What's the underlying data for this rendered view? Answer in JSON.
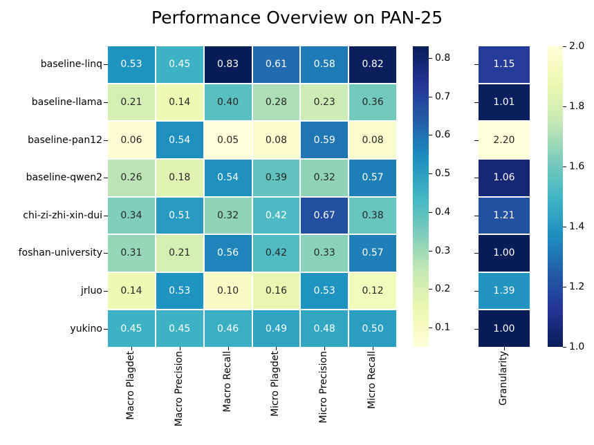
{
  "chart_data": {
    "type": "heatmap",
    "title": "Performance Overview on PAN-25",
    "rows": [
      "baseline-linq",
      "baseline-llama",
      "baseline-pan12",
      "baseline-qwen2",
      "chi-zi-zhi-xin-dui",
      "foshan-university",
      "jrluo",
      "yukino"
    ],
    "panels": [
      {
        "id": "main",
        "columns": [
          "Macro Plagdet",
          "Macro Precision",
          "Macro Recall",
          "Micro Plagdet",
          "Micro Precision",
          "Micro Recall"
        ],
        "values": [
          [
            0.53,
            0.45,
            0.83,
            0.61,
            0.58,
            0.82
          ],
          [
            0.21,
            0.14,
            0.4,
            0.28,
            0.23,
            0.36
          ],
          [
            0.06,
            0.54,
            0.05,
            0.08,
            0.59,
            0.08
          ],
          [
            0.26,
            0.18,
            0.54,
            0.39,
            0.32,
            0.57
          ],
          [
            0.34,
            0.51,
            0.32,
            0.423,
            0.67,
            0.38
          ],
          [
            0.31,
            0.21,
            0.56,
            0.417,
            0.33,
            0.57
          ],
          [
            0.14,
            0.53,
            0.1,
            0.16,
            0.53,
            0.12
          ],
          [
            0.45,
            0.45,
            0.46,
            0.49,
            0.48,
            0.5
          ]
        ],
        "cbar_min": 0.05,
        "cbar_max": 0.83,
        "colormap_reversed": false,
        "colorbar_ticks": [
          0.8,
          0.7,
          0.6,
          0.5,
          0.4,
          0.3,
          0.2,
          0.1
        ],
        "show_row_labels": true
      },
      {
        "id": "granularity",
        "columns": [
          "Granularity"
        ],
        "values": [
          [
            1.15
          ],
          [
            1.01
          ],
          [
            2.2
          ],
          [
            1.06
          ],
          [
            1.21
          ],
          [
            1.0
          ],
          [
            1.39
          ],
          [
            1.0
          ]
        ],
        "cbar_min": 1.0,
        "cbar_max": 2.0,
        "colormap_reversed": true,
        "colorbar_ticks": [
          2.0,
          1.8,
          1.6,
          1.4,
          1.2,
          1.0
        ],
        "show_row_labels": false
      }
    ],
    "colormap": {
      "name": "YlGnBu",
      "stops": [
        "#ffffd9",
        "#edf8b1",
        "#c7e9b4",
        "#7fcdbb",
        "#41b6c4",
        "#1d91c0",
        "#225ea8",
        "#253494",
        "#081d58"
      ]
    },
    "annotation_colors": {
      "on_dark": "#ffffff",
      "on_light": "#262626"
    },
    "luminance_threshold": 0.408,
    "value_decimals": 2,
    "tick_decimals": 1
  }
}
